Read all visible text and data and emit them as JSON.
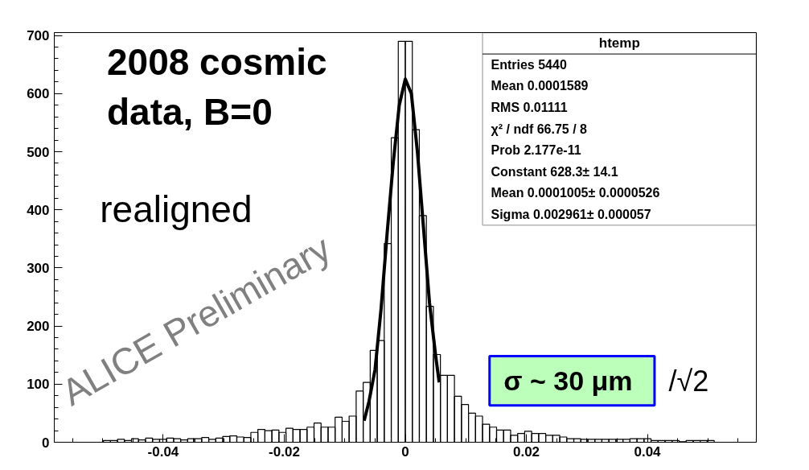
{
  "chart_data": {
    "type": "histogram",
    "title": "htemp",
    "bins": [
      -0.058,
      -0.05684,
      -0.05568,
      -0.05452,
      -0.05336,
      -0.0522,
      -0.05104,
      -0.04988,
      -0.04872,
      -0.04756,
      -0.0464,
      -0.04524,
      -0.04408,
      -0.04292,
      -0.04176,
      -0.0406,
      -0.03944,
      -0.03828,
      -0.03712,
      -0.03596,
      -0.0348,
      -0.03364,
      -0.03248,
      -0.03132,
      -0.03016,
      -0.029,
      -0.02784,
      -0.02668,
      -0.02552,
      -0.02436,
      -0.0232,
      -0.02204,
      -0.02088,
      -0.01972,
      -0.01856,
      -0.0174,
      -0.01624,
      -0.01508,
      -0.01392,
      -0.01276,
      -0.0116,
      -0.01044,
      -0.00928,
      -0.00812,
      -0.00696,
      -0.0058,
      -0.00464,
      -0.00348,
      -0.00232,
      -0.00116,
      0,
      0.00116,
      0.00232,
      0.00348,
      0.00464,
      0.0058,
      0.00696,
      0.00812,
      0.00928,
      0.01044,
      0.0116,
      0.01276,
      0.01392,
      0.01508,
      0.01624,
      0.0174,
      0.01856,
      0.01972,
      0.02088,
      0.02204,
      0.0232,
      0.02436,
      0.02552,
      0.02668,
      0.02784,
      0.029,
      0.03016,
      0.03132,
      0.03248,
      0.03364,
      0.0348,
      0.03596,
      0.03712,
      0.03828,
      0.03944,
      0.0406,
      0.04176,
      0.04292,
      0.04408,
      0.04524,
      0.0464,
      0.04756,
      0.04872,
      0.04988,
      0.05104,
      0.0522,
      0.05336,
      0.05452,
      0.05568,
      0.05684,
      0.058
    ],
    "values": [
      0,
      0,
      0,
      0,
      0,
      0,
      0,
      3,
      3,
      5,
      3,
      6,
      4,
      7,
      5,
      5,
      7,
      6,
      4,
      6,
      6,
      8,
      5,
      7,
      10,
      11,
      9,
      8,
      17,
      22,
      20,
      21,
      17,
      24,
      22,
      22,
      26,
      33,
      26,
      26,
      43,
      36,
      45,
      88,
      103,
      158,
      175,
      342,
      524,
      690,
      690,
      538,
      390,
      234,
      151,
      115,
      115,
      79,
      65,
      50,
      45,
      31,
      26,
      21,
      21,
      12,
      15,
      19,
      15,
      15,
      12,
      12,
      9,
      6,
      6,
      5,
      5,
      5,
      5,
      5,
      5,
      5,
      6,
      6,
      6,
      3,
      3,
      3,
      3,
      1,
      3,
      3,
      3,
      3,
      0,
      0,
      0,
      0,
      0,
      0
    ],
    "color": "#000000",
    "series": [
      {
        "type": "line",
        "color": "#000000",
        "x": [
          -0.0068,
          -0.006,
          -0.005,
          -0.004,
          -0.003,
          -0.002,
          -0.001,
          0,
          0.001,
          0.002,
          0.003,
          0.004,
          0.005,
          0.0056
        ],
        "values": [
          37,
          70,
          125,
          230,
          360,
          480,
          580,
          625,
          600,
          500,
          370,
          240,
          150,
          103
        ]
      }
    ],
    "xlim": [
      -0.058,
      0.058
    ],
    "ylim": [
      0,
      705
    ],
    "xticks": [
      -0.04,
      -0.02,
      0,
      0.02,
      0.04
    ],
    "yticks": [
      0,
      100,
      200,
      300,
      400,
      500,
      600,
      700
    ],
    "grid": false,
    "annotations": [
      "2008 cosmic\ndata, B=0",
      "realigned",
      "ALICE Preliminary",
      "σ ~ 30 μm",
      "/√2",
      "Entries 5440",
      "Mean 0.0001589",
      "RMS 0.01111",
      "χ² / ndf 66.75 / 8",
      "Prob 2.177e-11",
      "Constant 628.3± 14.1",
      "Mean 0.0001005± 0.0000526",
      "Sigma 0.002961± 0.000057"
    ]
  }
}
